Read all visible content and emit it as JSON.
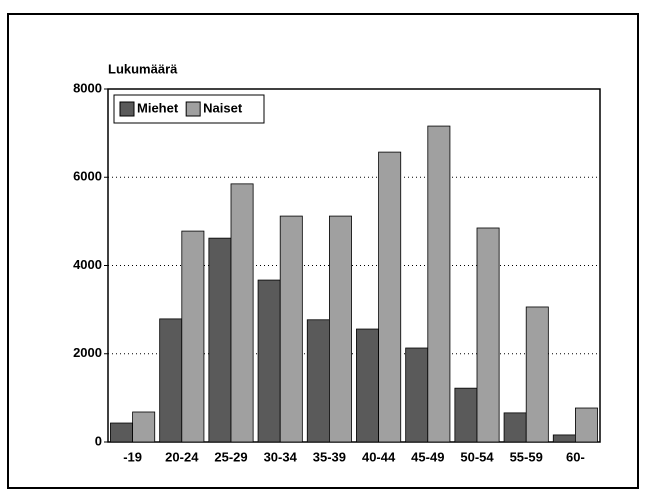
{
  "chart_data": {
    "type": "bar",
    "y_label": "Lukumäärä",
    "categories": [
      "-19",
      "20-24",
      "25-29",
      "30-34",
      "35-39",
      "40-44",
      "45-49",
      "50-54",
      "55-59",
      "60-"
    ],
    "series": [
      {
        "name": "Miehet",
        "color": "#5a5a5a",
        "values": [
          430,
          2790,
          4620,
          3670,
          2770,
          2560,
          2130,
          1220,
          660,
          160
        ]
      },
      {
        "name": "Naiset",
        "color": "#a0a0a0",
        "values": [
          680,
          4780,
          5850,
          5120,
          5120,
          6570,
          7160,
          4850,
          3060,
          770
        ]
      }
    ],
    "ylim": [
      0,
      8000
    ],
    "yticks": [
      0,
      2000,
      4000,
      6000,
      8000
    ],
    "grid": true,
    "legend": "top-left"
  }
}
